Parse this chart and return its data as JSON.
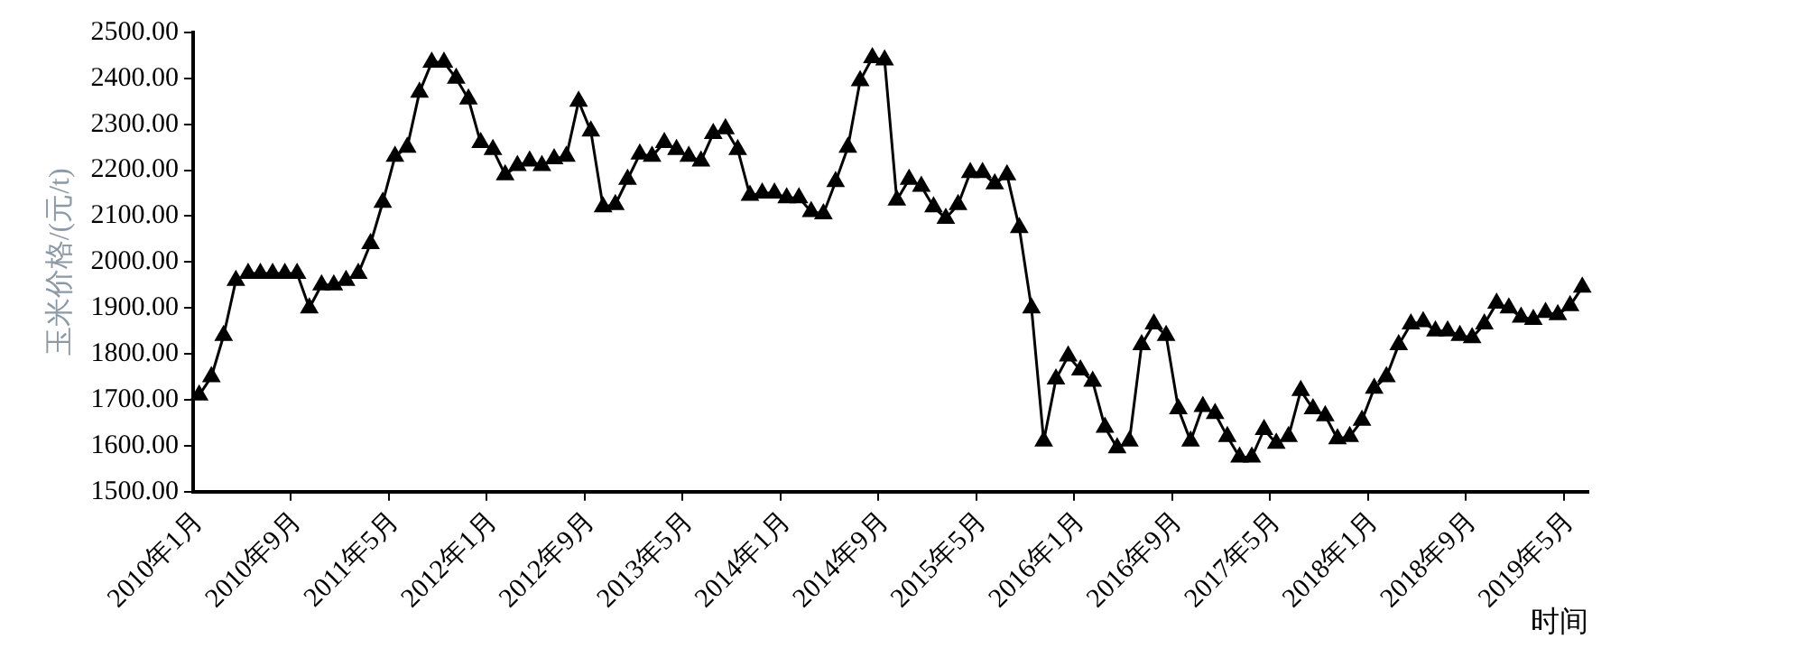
{
  "chart_data": {
    "type": "line",
    "xlabel": "时间",
    "ylabel": "玉米价格/(元/t)",
    "categories": [
      "2010年1月",
      null,
      null,
      null,
      null,
      null,
      null,
      null,
      "2010年9月",
      null,
      null,
      null,
      null,
      null,
      null,
      null,
      "2011年5月",
      null,
      null,
      null,
      null,
      null,
      null,
      null,
      "2012年1月",
      null,
      null,
      null,
      null,
      null,
      null,
      null,
      "2012年9月",
      null,
      null,
      null,
      null,
      null,
      null,
      null,
      "2013年5月",
      null,
      null,
      null,
      null,
      null,
      null,
      null,
      "2014年1月",
      null,
      null,
      null,
      null,
      null,
      null,
      null,
      "2014年9月",
      null,
      null,
      null,
      null,
      null,
      null,
      null,
      "2015年5月",
      null,
      null,
      null,
      null,
      null,
      null,
      null,
      "2016年1月",
      null,
      null,
      null,
      null,
      null,
      null,
      null,
      "2016年9月",
      null,
      null,
      null,
      null,
      null,
      null,
      null,
      "2017年5月",
      null,
      null,
      null,
      null,
      null,
      null,
      null,
      "2018年1月",
      null,
      null,
      null,
      null,
      null,
      null,
      null,
      "2018年9月",
      null,
      null,
      null,
      null,
      null,
      null,
      null,
      "2019年5月",
      null
    ],
    "series": [
      {
        "color": "#000000",
        "values": [
          1710,
          1750,
          1840,
          1960,
          1975,
          1975,
          1975,
          1975,
          1975,
          1900,
          1950,
          1950,
          1960,
          1975,
          2040,
          2130,
          2230,
          2250,
          2370,
          2435,
          2435,
          2400,
          2355,
          2260,
          2245,
          2190,
          2210,
          2220,
          2210,
          2225,
          2230,
          2350,
          2285,
          2120,
          2125,
          2180,
          2235,
          2230,
          2260,
          2245,
          2230,
          2220,
          2280,
          2290,
          2245,
          2145,
          2150,
          2150,
          2140,
          2140,
          2110,
          2105,
          2175,
          2250,
          2395,
          2445,
          2440,
          2135,
          2180,
          2165,
          2120,
          2095,
          2125,
          2195,
          2195,
          2170,
          2190,
          2075,
          1900,
          1610,
          1745,
          1795,
          1765,
          1740,
          1640,
          1595,
          1610,
          1820,
          1865,
          1840,
          1680,
          1610,
          1685,
          1670,
          1620,
          1575,
          1575,
          1635,
          1605,
          1620,
          1720,
          1680,
          1665,
          1615,
          1620,
          1655,
          1725,
          1750,
          1820,
          1865,
          1870,
          1850,
          1850,
          1840,
          1835,
          1865,
          1910,
          1900,
          1880,
          1875,
          1890,
          1885,
          1905,
          1945
        ]
      }
    ],
    "ylim": [
      1500,
      2500
    ],
    "yticks": [
      {
        "value": 1500,
        "label": "1500.00"
      },
      {
        "value": 1600,
        "label": "1600.00"
      },
      {
        "value": 1700,
        "label": "1700.00"
      },
      {
        "value": 1800,
        "label": "1800.00"
      },
      {
        "value": 1900,
        "label": "1900.00"
      },
      {
        "value": 2000,
        "label": "2000.00"
      },
      {
        "value": 2100,
        "label": "2100.00"
      },
      {
        "value": 2200,
        "label": "2200.00"
      },
      {
        "value": 2300,
        "label": "2300.00"
      },
      {
        "value": 2400,
        "label": "2400.00"
      },
      {
        "value": 2500,
        "label": "2500.00"
      }
    ],
    "grid": false,
    "legend": false,
    "marker": "triangle",
    "line_style": "solid"
  }
}
